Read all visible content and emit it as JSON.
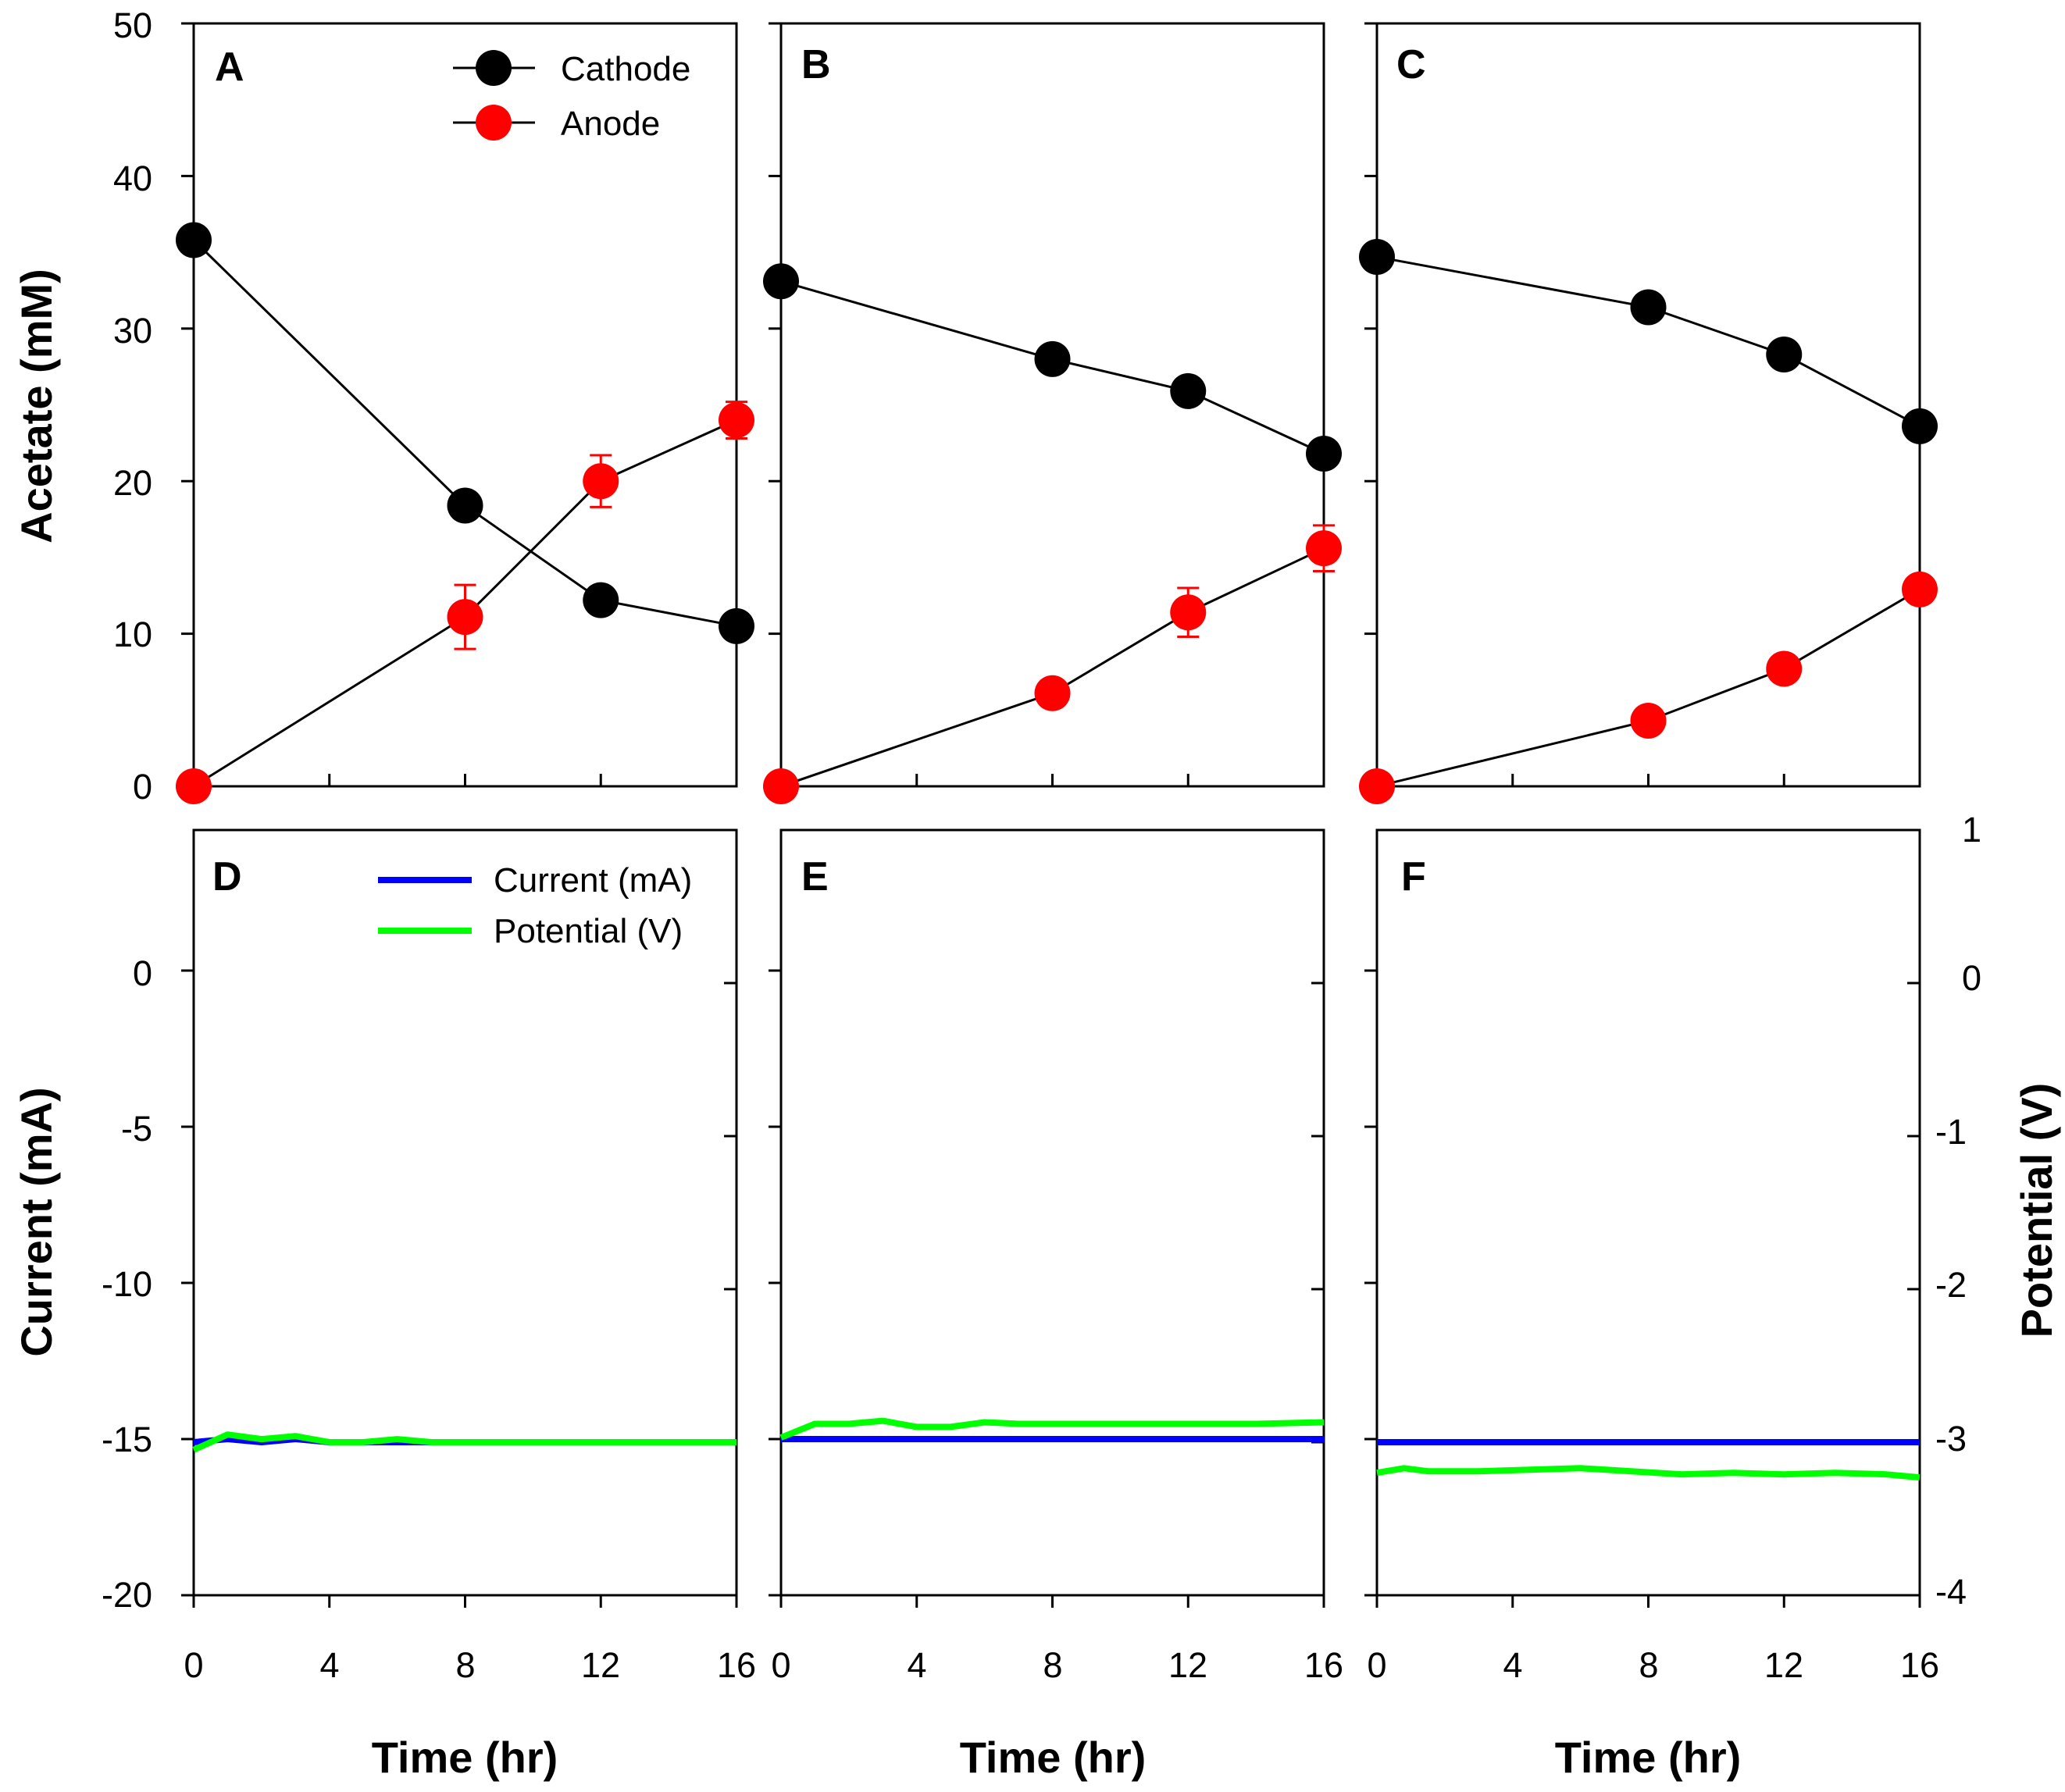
{
  "colors": {
    "cathode": "#000000",
    "anode": "#ff0000",
    "current": "#0000ff",
    "potential": "#00ff00"
  },
  "chart_data": [
    {
      "panel": "A",
      "type": "line",
      "xlim": [
        0,
        16
      ],
      "ylim": [
        0,
        50
      ],
      "yticks": [
        "0",
        "10",
        "20",
        "30",
        "40",
        "50"
      ],
      "ylabel": "Acetate (mM)",
      "legend": [
        "Cathode",
        "Anode"
      ],
      "series": [
        {
          "name": "Cathode",
          "x": [
            0,
            8,
            12,
            16
          ],
          "values": [
            35.8,
            18.4,
            12.2,
            10.5
          ],
          "err": [
            0,
            0,
            0,
            0
          ]
        },
        {
          "name": "Anode",
          "x": [
            0,
            8,
            12,
            16
          ],
          "values": [
            0,
            11.1,
            20.0,
            24.0
          ],
          "err": [
            0,
            2.1,
            1.7,
            1.2
          ]
        }
      ]
    },
    {
      "panel": "B",
      "type": "line",
      "xlim": [
        0,
        16
      ],
      "ylim": [
        0,
        50
      ],
      "series": [
        {
          "name": "Cathode",
          "x": [
            0,
            8,
            12,
            16
          ],
          "values": [
            33.1,
            28.0,
            25.9,
            21.8
          ],
          "err": [
            0,
            0,
            0,
            0
          ]
        },
        {
          "name": "Anode",
          "x": [
            0,
            8,
            12,
            16
          ],
          "values": [
            0,
            6.1,
            11.4,
            15.6
          ],
          "err": [
            0,
            0,
            1.6,
            1.5
          ]
        }
      ]
    },
    {
      "panel": "C",
      "type": "line",
      "xlim": [
        0,
        16
      ],
      "ylim": [
        0,
        50
      ],
      "series": [
        {
          "name": "Cathode",
          "x": [
            0,
            8,
            12,
            16
          ],
          "values": [
            34.7,
            31.4,
            28.3,
            23.6
          ],
          "err": [
            0,
            0,
            0,
            0
          ]
        },
        {
          "name": "Anode",
          "x": [
            0,
            8,
            12,
            16
          ],
          "values": [
            0,
            4.3,
            7.7,
            12.9
          ],
          "err": [
            0,
            0,
            0,
            0
          ]
        }
      ]
    },
    {
      "panel": "D",
      "type": "line",
      "xlim": [
        0,
        16
      ],
      "ylim": [
        -20,
        4.5
      ],
      "xticks": [
        "0",
        "4",
        "8",
        "12",
        "16"
      ],
      "yticks": [
        "-20",
        "-15",
        "-10",
        "-5",
        "0"
      ],
      "ylabel": "Current (mA)",
      "xlabel": "Time (hr)",
      "legend": [
        "Current (mA)",
        "Potential (V)"
      ],
      "series": [
        {
          "name": "Current (mA)",
          "x": [
            0,
            1,
            2,
            3,
            4,
            6,
            8,
            10,
            12,
            14,
            16
          ],
          "values": [
            -15.1,
            -15.0,
            -15.1,
            -15.0,
            -15.1,
            -15.1,
            -15.1,
            -15.1,
            -15.1,
            -15.1,
            -15.1
          ]
        },
        {
          "name": "Potential (V)",
          "x": [
            0,
            1,
            2,
            3,
            4,
            5,
            6,
            7,
            8,
            10,
            12,
            14,
            16
          ],
          "values": [
            -3.05,
            -2.95,
            -2.98,
            -2.96,
            -3.0,
            -3.0,
            -2.98,
            -3.0,
            -3.0,
            -3.0,
            -3.0,
            -3.0,
            -3.0
          ]
        }
      ]
    },
    {
      "panel": "E",
      "type": "line",
      "xlim": [
        0,
        16
      ],
      "ylim": [
        -20,
        4.5
      ],
      "xticks": [
        "0",
        "4",
        "8",
        "12",
        "16"
      ],
      "xlabel": "Time (hr)",
      "series": [
        {
          "name": "Current (mA)",
          "x": [
            0,
            4,
            8,
            12,
            16
          ],
          "values": [
            -15.0,
            -15.0,
            -15.0,
            -15.0,
            -15.0
          ]
        },
        {
          "name": "Potential (V)",
          "x": [
            0,
            1,
            2,
            3,
            4,
            5,
            6,
            7,
            8,
            10,
            12,
            14,
            16
          ],
          "values": [
            -2.97,
            -2.88,
            -2.88,
            -2.86,
            -2.9,
            -2.9,
            -2.87,
            -2.88,
            -2.88,
            -2.88,
            -2.88,
            -2.88,
            -2.87
          ]
        }
      ]
    },
    {
      "panel": "F",
      "type": "line",
      "xlim": [
        0,
        16
      ],
      "ylim": [
        -20,
        4.5
      ],
      "xticks": [
        "0",
        "4",
        "8",
        "12",
        "16"
      ],
      "xlabel": "Time (hr)",
      "y2lim": [
        -4,
        1
      ],
      "y2ticks": [
        "-4",
        "-3",
        "-2",
        "-1",
        "0",
        "1"
      ],
      "y2label": "Potential (V)",
      "series": [
        {
          "name": "Current (mA)",
          "x": [
            0,
            2,
            4,
            6,
            8,
            10,
            12,
            14,
            16
          ],
          "values": [
            -15.1,
            -15.1,
            -15.1,
            -15.1,
            -15.1,
            -15.1,
            -15.1,
            -15.1,
            -15.1
          ]
        },
        {
          "name": "Potential (V)",
          "x": [
            0,
            0.8,
            1.5,
            3,
            4.5,
            6,
            7.5,
            9,
            10.5,
            12,
            13.5,
            15,
            16
          ],
          "values": [
            -3.2,
            -3.17,
            -3.19,
            -3.19,
            -3.18,
            -3.17,
            -3.19,
            -3.21,
            -3.2,
            -3.21,
            -3.2,
            -3.21,
            -3.23
          ]
        }
      ]
    }
  ]
}
